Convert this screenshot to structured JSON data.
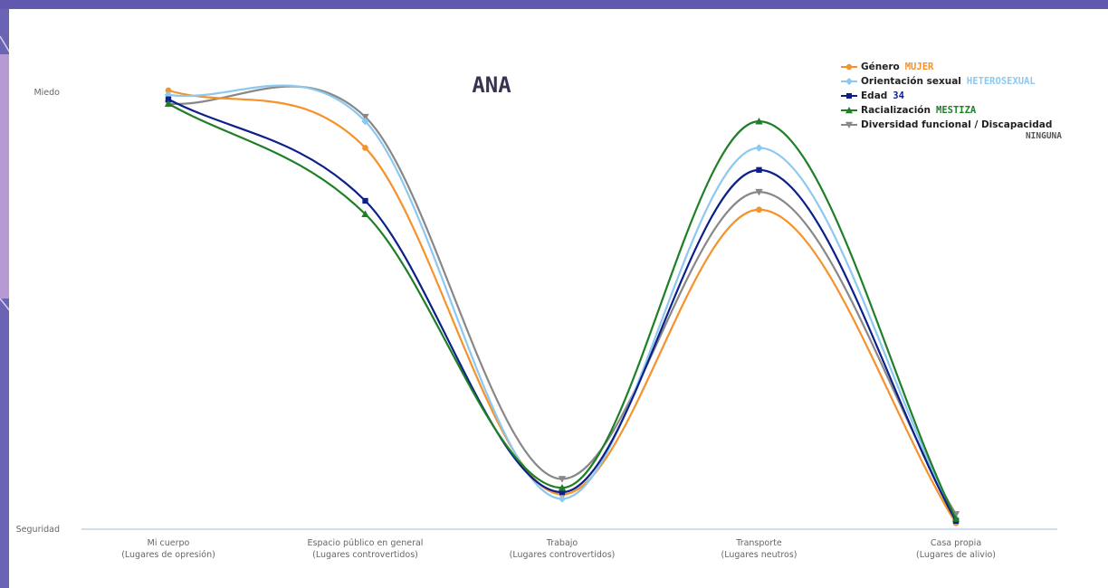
{
  "chart_data": {
    "type": "line",
    "title": "ANA",
    "y_tick_labels": [
      "Miedo",
      "Seguridad"
    ],
    "ylim": [
      0,
      100
    ],
    "grid": false,
    "legend_position": "top-right",
    "categories": [
      "Mi cuerpo\n(Lugares de opresión)",
      "Espacio público en general\n(Lugares controvertidos)",
      "Trabajo\n(Lugares controvertidos)",
      "Transporte\n(Lugares neutros)",
      "Casa propia\n(Lugares de alivio)"
    ],
    "series": [
      {
        "name": "Género",
        "value_label": "MUJER",
        "color": "#f5922b",
        "value_color": "#f5922b",
        "marker": "circle",
        "values": [
          100,
          87,
          8.5,
          73,
          2
        ]
      },
      {
        "name": "Orientación sexual",
        "value_label": "HETEROSEXUAL",
        "color": "#8cc8f0",
        "value_color": "#8cc8f0",
        "marker": "diamond",
        "values": [
          99,
          93,
          7.5,
          87,
          3
        ]
      },
      {
        "name": "Edad",
        "value_label": "34",
        "color": "#0d1f8a",
        "value_color": "#0d1f8a",
        "marker": "square",
        "values": [
          98,
          75,
          9,
          82,
          2.5
        ]
      },
      {
        "name": "Racialización",
        "value_label": "MESTIZA",
        "color": "#1f7f27",
        "value_color": "#1f7f27",
        "marker": "triangle",
        "values": [
          97,
          72,
          10,
          93,
          3
        ]
      },
      {
        "name": "Diversidad funcional / Discapacidad",
        "value_label": "NINGUNA",
        "color": "#888888",
        "value_color": "#555555",
        "marker": "triangle-down",
        "values": [
          97,
          94,
          12,
          77,
          4
        ]
      }
    ]
  }
}
